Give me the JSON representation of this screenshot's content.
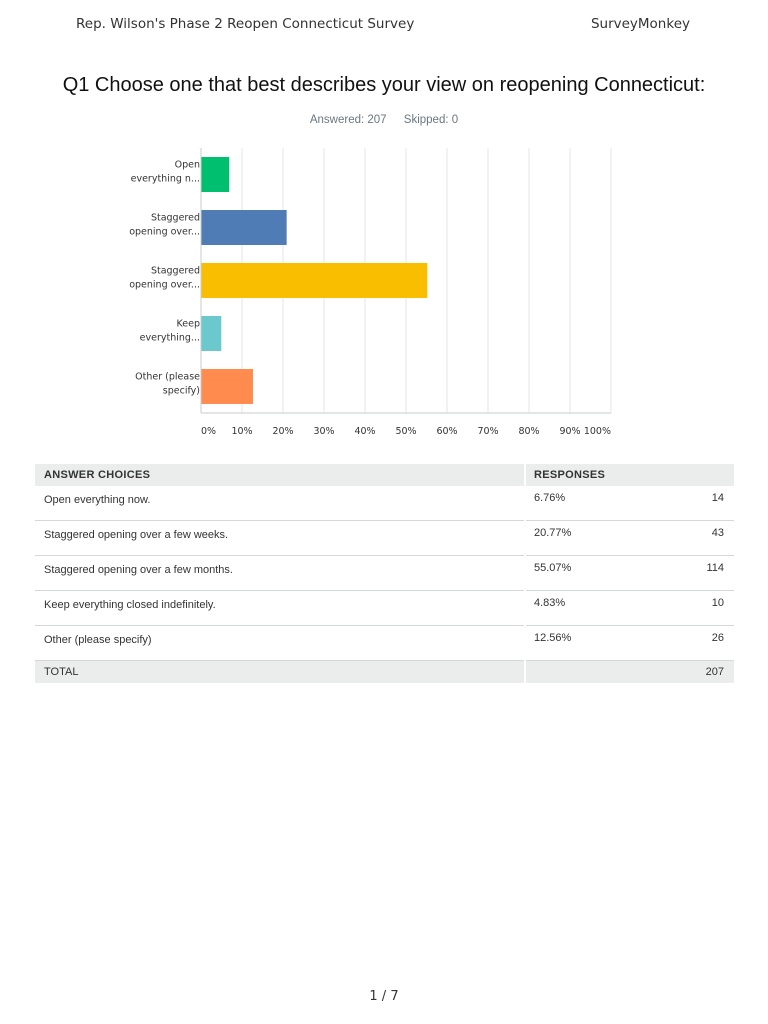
{
  "header": {
    "survey_title": "Rep. Wilson's Phase 2 Reopen Connecticut Survey",
    "brand": "SurveyMonkey"
  },
  "question": {
    "title": "Q1 Choose one that best describes your view on reopening Connecticut:",
    "answered": "Answered: 207",
    "skipped": "Skipped: 0"
  },
  "chart_data": {
    "type": "bar",
    "orientation": "horizontal",
    "categories": [
      [
        "Open",
        "everything n..."
      ],
      [
        "Staggered",
        "opening over..."
      ],
      [
        "Staggered",
        "opening over..."
      ],
      [
        "Keep",
        "everything..."
      ],
      [
        "Other (please",
        "specify)"
      ]
    ],
    "values": [
      6.76,
      20.77,
      55.07,
      4.83,
      12.56
    ],
    "colors": [
      "#00bf6f",
      "#507cb6",
      "#f9be00",
      "#6bc8cd",
      "#ff8b4f"
    ],
    "xticks": [
      "0%",
      "10%",
      "20%",
      "30%",
      "40%",
      "50%",
      "60%",
      "70%",
      "80%",
      "90%",
      "100%"
    ],
    "xlim": [
      0,
      100
    ],
    "grid": true
  },
  "table": {
    "headers": {
      "choice": "ANSWER CHOICES",
      "responses": "RESPONSES"
    },
    "rows": [
      {
        "choice": "Open everything now.",
        "percent": "6.76%",
        "count": "14"
      },
      {
        "choice": "Staggered opening over a few weeks.",
        "percent": "20.77%",
        "count": "43"
      },
      {
        "choice": "Staggered opening over a few months.",
        "percent": "55.07%",
        "count": "114"
      },
      {
        "choice": "Keep everything closed indefinitely.",
        "percent": "4.83%",
        "count": "10"
      },
      {
        "choice": "Other (please specify)",
        "percent": "12.56%",
        "count": "26"
      }
    ],
    "total": {
      "label": "TOTAL",
      "count": "207"
    }
  },
  "footer": {
    "page_indicator": "1 / 7"
  }
}
